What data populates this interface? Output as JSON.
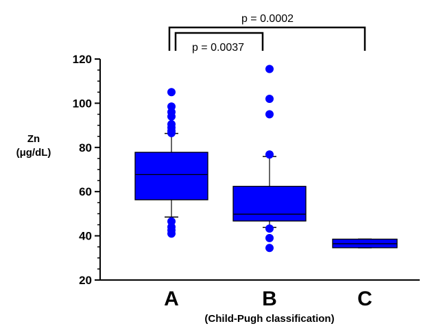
{
  "chart_data": {
    "type": "box",
    "categories": [
      "A",
      "B",
      "C"
    ],
    "ylabel": [
      "Zn",
      "(μg/dL)"
    ],
    "xlabel": "(Child-Pugh classification)",
    "ylim": [
      20,
      120
    ],
    "yticks": [
      20,
      40,
      60,
      80,
      100,
      120
    ],
    "grid": false,
    "color": "#0000ff",
    "boxes": [
      {
        "category": "A",
        "whisker_low": 48.5,
        "q1": 56.3,
        "median": 67.7,
        "q3": 77.8,
        "whisker_high": 86.3,
        "outliers": [
          105,
          98.5,
          96,
          94,
          90.5,
          89,
          87.5,
          86.5,
          46.5,
          44,
          42.5,
          41
        ]
      },
      {
        "category": "B",
        "whisker_low": 43.8,
        "q1": 46.7,
        "median": 49.8,
        "q3": 62.4,
        "whisker_high": 75.9,
        "outliers": [
          115.5,
          102,
          95,
          76.8,
          43.3,
          39,
          34.5
        ]
      },
      {
        "category": "C",
        "whisker_low": 34.6,
        "q1": 34.6,
        "median": 36.4,
        "q3": 38.5,
        "whisker_high": 38.5,
        "outliers": []
      }
    ],
    "annotations": [
      {
        "from": "A",
        "to": "B",
        "text": "p = 0.0037"
      },
      {
        "from": "A",
        "to": "C",
        "text": "p = 0.0002"
      }
    ]
  }
}
